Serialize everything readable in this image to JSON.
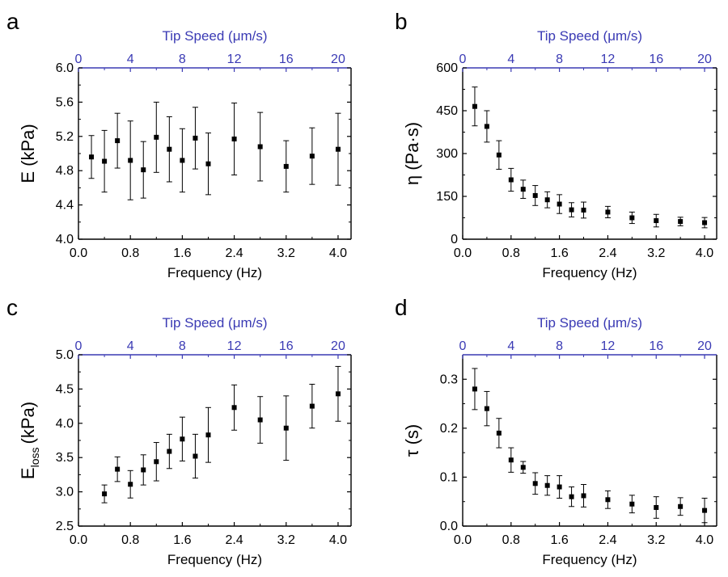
{
  "colors": {
    "bottom_axis": "#000000",
    "top_axis": "#3a3ab4",
    "marker": "#000000"
  },
  "chart_data": [
    {
      "panel": "a",
      "type": "scatter",
      "xlabel": "Frequency (Hz)",
      "x2label": "Tip Speed (μm/s)",
      "ylabel": "E (kPa)",
      "xlim": [
        0.0,
        4.2
      ],
      "ylim": [
        4.0,
        6.0
      ],
      "xticks": [
        "0.0",
        "0.8",
        "1.6",
        "2.4",
        "3.2",
        "4.0"
      ],
      "x2ticks": [
        "0",
        "4",
        "8",
        "12",
        "16",
        "20"
      ],
      "x2lim": [
        0,
        21
      ],
      "yticks": [
        "4.0",
        "4.4",
        "4.8",
        "5.2",
        "5.6",
        "6.0"
      ],
      "x": [
        0.2,
        0.4,
        0.6,
        0.8,
        1.0,
        1.2,
        1.4,
        1.6,
        1.8,
        2.0,
        2.4,
        2.8,
        3.2,
        3.6,
        4.0
      ],
      "y": [
        4.96,
        4.91,
        5.15,
        4.92,
        4.81,
        5.19,
        5.05,
        4.92,
        5.18,
        4.88,
        5.17,
        5.08,
        4.85,
        4.97,
        5.05
      ],
      "err": [
        0.25,
        0.36,
        0.32,
        0.46,
        0.33,
        0.41,
        0.38,
        0.37,
        0.36,
        0.36,
        0.42,
        0.4,
        0.3,
        0.33,
        0.42
      ]
    },
    {
      "panel": "b",
      "type": "scatter",
      "xlabel": "Frequency (Hz)",
      "x2label": "Tip Speed (μm/s)",
      "ylabel": "η (Pa·s)",
      "xlim": [
        0.0,
        4.2
      ],
      "ylim": [
        0,
        600
      ],
      "xticks": [
        "0.0",
        "0.8",
        "1.6",
        "2.4",
        "3.2",
        "4.0"
      ],
      "x2ticks": [
        "0",
        "4",
        "8",
        "12",
        "16",
        "20"
      ],
      "x2lim": [
        0,
        21
      ],
      "yticks": [
        "0",
        "150",
        "300",
        "450",
        "600"
      ],
      "x": [
        0.2,
        0.4,
        0.6,
        0.8,
        1.0,
        1.2,
        1.4,
        1.6,
        1.8,
        2.0,
        2.4,
        2.8,
        3.2,
        3.6,
        4.0
      ],
      "y": [
        465,
        395,
        295,
        208,
        175,
        153,
        138,
        123,
        103,
        102,
        95,
        75,
        65,
        62,
        58
      ],
      "err": [
        68,
        55,
        50,
        40,
        32,
        35,
        28,
        33,
        25,
        28,
        20,
        20,
        22,
        15,
        18
      ]
    },
    {
      "panel": "c",
      "type": "scatter",
      "xlabel": "Frequency (Hz)",
      "x2label": "Tip Speed (μm/s)",
      "ylabel_main": "E",
      "ylabel_sub": "loss",
      "ylabel_unit": "(kPa)",
      "xlim": [
        0.0,
        4.2
      ],
      "ylim": [
        2.5,
        5.0
      ],
      "xticks": [
        "0.0",
        "0.8",
        "1.6",
        "2.4",
        "3.2",
        "4.0"
      ],
      "x2ticks": [
        "0",
        "4",
        "8",
        "12",
        "16",
        "20"
      ],
      "x2lim": [
        0,
        21
      ],
      "yticks": [
        "2.5",
        "3.0",
        "3.5",
        "4.0",
        "4.5",
        "5.0"
      ],
      "x": [
        0.4,
        0.6,
        0.8,
        1.0,
        1.2,
        1.4,
        1.6,
        1.8,
        2.0,
        2.4,
        2.8,
        3.2,
        3.6,
        4.0
      ],
      "y": [
        2.97,
        3.33,
        3.11,
        3.32,
        3.44,
        3.59,
        3.77,
        3.52,
        3.83,
        4.23,
        4.05,
        3.93,
        4.25,
        4.43
      ],
      "err": [
        0.13,
        0.18,
        0.2,
        0.22,
        0.28,
        0.25,
        0.32,
        0.32,
        0.4,
        0.33,
        0.34,
        0.47,
        0.32,
        0.4
      ]
    },
    {
      "panel": "d",
      "type": "scatter",
      "xlabel": "Frequency (Hz)",
      "x2label": "Tip Speed (μm/s)",
      "ylabel": "τ (s)",
      "xlim": [
        0.0,
        4.2
      ],
      "ylim": [
        0.0,
        0.35
      ],
      "xticks": [
        "0.0",
        "0.8",
        "1.6",
        "2.4",
        "3.2",
        "4.0"
      ],
      "x2ticks": [
        "0",
        "4",
        "8",
        "12",
        "16",
        "20"
      ],
      "x2lim": [
        0,
        21
      ],
      "yticks": [
        "0.0",
        "0.1",
        "0.2",
        "0.3"
      ],
      "yticks_values": [
        0.0,
        0.1,
        0.2,
        0.3
      ],
      "x": [
        0.2,
        0.4,
        0.6,
        0.8,
        1.0,
        1.2,
        1.4,
        1.6,
        1.8,
        2.0,
        2.4,
        2.8,
        3.2,
        3.6,
        4.0
      ],
      "y": [
        0.28,
        0.24,
        0.19,
        0.135,
        0.12,
        0.087,
        0.083,
        0.08,
        0.06,
        0.062,
        0.054,
        0.045,
        0.038,
        0.04,
        0.032
      ],
      "err": [
        0.042,
        0.035,
        0.03,
        0.025,
        0.012,
        0.022,
        0.02,
        0.023,
        0.02,
        0.023,
        0.018,
        0.018,
        0.022,
        0.018,
        0.025
      ]
    }
  ]
}
